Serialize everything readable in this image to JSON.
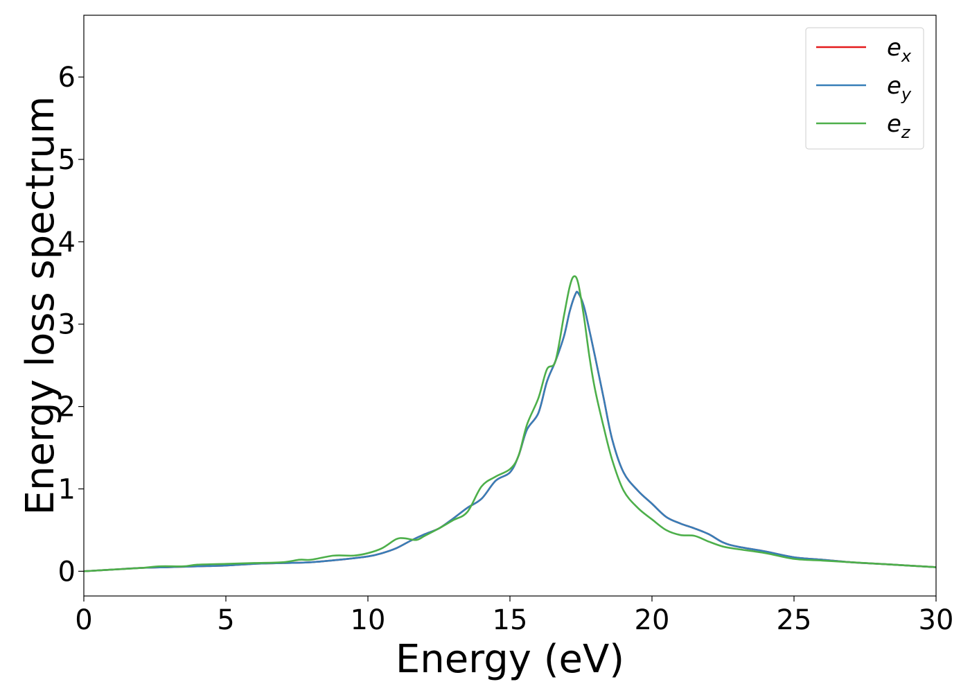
{
  "chart_data": {
    "type": "line",
    "xlabel": "Energy (eV)",
    "ylabel": "Energy loss spectrum",
    "xlim": [
      0,
      30
    ],
    "ylim": [
      -0.3,
      6.75
    ],
    "xticks": [
      "0",
      "5",
      "10",
      "15",
      "20",
      "25",
      "30"
    ],
    "yticks": [
      "0",
      "1",
      "2",
      "3",
      "4",
      "5",
      "6"
    ],
    "grid": false,
    "legend_position": "top-right",
    "series": [
      {
        "name": "e_x",
        "legend_base": "e",
        "legend_sub": "x",
        "color": "#e41a1c",
        "x": [
          0,
          1,
          2,
          3,
          4,
          5,
          6,
          7,
          8,
          9,
          10,
          10.5,
          11,
          11.5,
          12,
          12.5,
          13,
          13.5,
          14,
          14.5,
          15,
          15.3,
          15.6,
          16,
          16.3,
          16.6,
          16.9,
          17.1,
          17.3,
          17.4,
          17.6,
          17.8,
          18,
          18.3,
          18.6,
          19,
          19.5,
          20,
          20.5,
          21,
          21.5,
          22,
          22.5,
          23,
          24,
          25,
          26,
          27,
          28,
          29,
          30
        ],
        "y": [
          0,
          0.02,
          0.04,
          0.05,
          0.06,
          0.07,
          0.09,
          0.1,
          0.11,
          0.14,
          0.18,
          0.22,
          0.28,
          0.37,
          0.45,
          0.52,
          0.64,
          0.77,
          0.88,
          1.1,
          1.2,
          1.4,
          1.72,
          1.92,
          2.3,
          2.55,
          2.85,
          3.15,
          3.36,
          3.38,
          3.22,
          2.92,
          2.6,
          2.1,
          1.6,
          1.2,
          0.98,
          0.82,
          0.66,
          0.58,
          0.52,
          0.45,
          0.35,
          0.3,
          0.24,
          0.17,
          0.14,
          0.11,
          0.09,
          0.07,
          0.05
        ]
      },
      {
        "name": "e_y",
        "legend_base": "e",
        "legend_sub": "y",
        "color": "#377eb8",
        "x": [
          0,
          1,
          2,
          3,
          4,
          5,
          6,
          7,
          8,
          9,
          10,
          10.5,
          11,
          11.5,
          12,
          12.5,
          13,
          13.5,
          14,
          14.5,
          15,
          15.3,
          15.6,
          16,
          16.3,
          16.6,
          16.9,
          17.1,
          17.3,
          17.4,
          17.6,
          17.8,
          18,
          18.3,
          18.6,
          19,
          19.5,
          20,
          20.5,
          21,
          21.5,
          22,
          22.5,
          23,
          24,
          25,
          26,
          27,
          28,
          29,
          30
        ],
        "y": [
          0,
          0.02,
          0.04,
          0.05,
          0.06,
          0.07,
          0.09,
          0.1,
          0.11,
          0.14,
          0.18,
          0.22,
          0.28,
          0.37,
          0.45,
          0.52,
          0.64,
          0.77,
          0.88,
          1.1,
          1.2,
          1.4,
          1.72,
          1.92,
          2.3,
          2.55,
          2.85,
          3.15,
          3.36,
          3.38,
          3.22,
          2.92,
          2.6,
          2.1,
          1.6,
          1.2,
          0.98,
          0.82,
          0.66,
          0.58,
          0.52,
          0.45,
          0.35,
          0.3,
          0.24,
          0.17,
          0.14,
          0.11,
          0.09,
          0.07,
          0.05
        ]
      },
      {
        "name": "e_z",
        "legend_base": "e",
        "legend_sub": "z",
        "color": "#4daf4a",
        "x": [
          0,
          1,
          2,
          2.7,
          3.5,
          4,
          5,
          6,
          7,
          7.6,
          8,
          8.8,
          9.5,
          10,
          10.5,
          11,
          11.3,
          11.7,
          12,
          12.5,
          13,
          13.5,
          14,
          14.5,
          15,
          15.3,
          15.6,
          16,
          16.3,
          16.6,
          16.9,
          17.1,
          17.25,
          17.4,
          17.6,
          17.8,
          18,
          18.3,
          18.6,
          19,
          19.5,
          20,
          20.5,
          21,
          21.5,
          22,
          22.5,
          23,
          24,
          25,
          26,
          27,
          28,
          29,
          30
        ],
        "y": [
          0,
          0.02,
          0.04,
          0.06,
          0.06,
          0.08,
          0.09,
          0.1,
          0.11,
          0.14,
          0.14,
          0.19,
          0.19,
          0.22,
          0.28,
          0.39,
          0.4,
          0.38,
          0.43,
          0.52,
          0.62,
          0.72,
          1.03,
          1.15,
          1.24,
          1.4,
          1.78,
          2.1,
          2.45,
          2.55,
          3.1,
          3.45,
          3.58,
          3.5,
          3.1,
          2.6,
          2.2,
          1.75,
          1.35,
          0.98,
          0.77,
          0.63,
          0.5,
          0.44,
          0.43,
          0.36,
          0.3,
          0.27,
          0.22,
          0.15,
          0.13,
          0.11,
          0.09,
          0.07,
          0.05
        ]
      }
    ]
  }
}
